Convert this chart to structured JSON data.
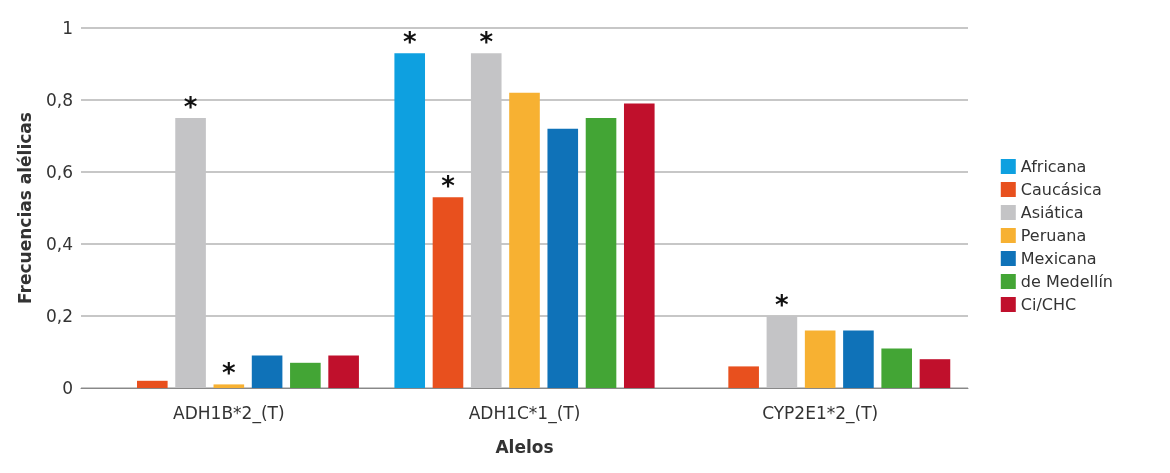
{
  "chart_data": {
    "type": "bar",
    "xlabel": "Alelos",
    "ylabel": "Frecuencias alélicas",
    "categories": [
      "ADH1B*2_(T)",
      "ADH1C*1_(T)",
      "CYP2E1*2_(T)"
    ],
    "series": [
      {
        "name": "Africana",
        "color": "#0ea0e0",
        "values": [
          0,
          0.93,
          0
        ],
        "value_labels": [
          null,
          "*",
          null
        ]
      },
      {
        "name": "Caucásica",
        "color": "#e8501e",
        "values": [
          0.02,
          0.53,
          0.06
        ],
        "value_labels": [
          null,
          "*",
          null
        ]
      },
      {
        "name": "Asiática",
        "color": "#c4c4c6",
        "values": [
          0.75,
          0.93,
          0.2
        ],
        "value_labels": [
          "*",
          "*",
          "*"
        ]
      },
      {
        "name": "Peruana",
        "color": "#f7b132",
        "values": [
          0.01,
          0.82,
          0.16
        ],
        "value_labels": [
          "*",
          null,
          null
        ]
      },
      {
        "name": "Mexicana",
        "color": "#0f72b8",
        "values": [
          0.09,
          0.72,
          0.16
        ],
        "value_labels": [
          null,
          null,
          null
        ]
      },
      {
        "name": "de Medellín",
        "color": "#43a535",
        "values": [
          0.07,
          0.75,
          0.11
        ],
        "value_labels": [
          null,
          null,
          null
        ]
      },
      {
        "name": "Ci/CHC",
        "color": "#c0102c",
        "values": [
          0.09,
          0.79,
          0.08
        ],
        "value_labels": [
          null,
          null,
          null
        ]
      }
    ],
    "ylim": [
      0,
      1
    ],
    "yticks": [
      0,
      {
        "value": 0.2,
        "label": "0,2"
      },
      {
        "value": 0.4,
        "label": "0,4"
      },
      {
        "value": 0.6,
        "label": "0,6"
      },
      {
        "value": 0.8,
        "label": "0,8"
      },
      1
    ],
    "grid": "y",
    "legend": "right"
  }
}
